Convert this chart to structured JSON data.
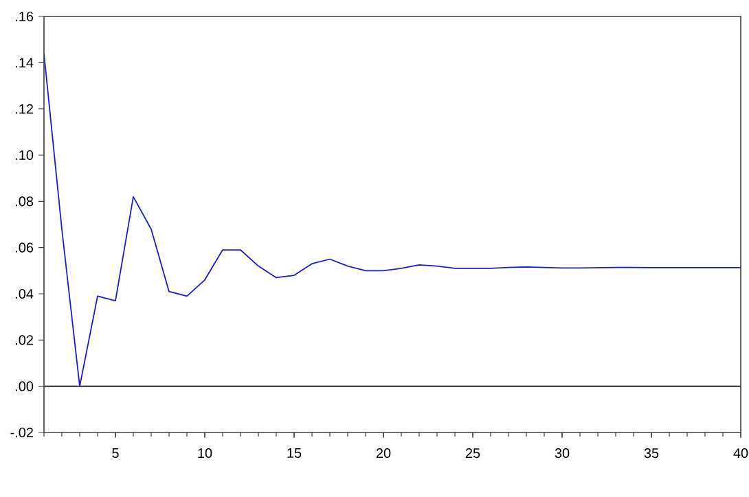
{
  "chart_data": {
    "type": "line",
    "x": [
      1,
      2,
      3,
      4,
      5,
      6,
      7,
      8,
      9,
      10,
      11,
      12,
      13,
      14,
      15,
      16,
      17,
      18,
      19,
      20,
      21,
      22,
      23,
      24,
      25,
      26,
      27,
      28,
      29,
      30,
      31,
      32,
      33,
      34,
      35,
      36,
      37,
      38,
      39,
      40
    ],
    "values": [
      0.144,
      0.068,
      0.0,
      0.039,
      0.037,
      0.082,
      0.068,
      0.041,
      0.039,
      0.046,
      0.059,
      0.059,
      0.052,
      0.047,
      0.048,
      0.053,
      0.055,
      0.052,
      0.05,
      0.05,
      0.051,
      0.0525,
      0.052,
      0.051,
      0.051,
      0.051,
      0.0514,
      0.0516,
      0.0514,
      0.0512,
      0.0512,
      0.0513,
      0.0514,
      0.0514,
      0.0513,
      0.0513,
      0.0513,
      0.0513,
      0.0513,
      0.0513
    ],
    "color": "#1a1adc",
    "line_style": "solid",
    "marker": "none",
    "xlim": [
      1,
      40
    ],
    "xticks": [
      5,
      10,
      15,
      20,
      25,
      30,
      35,
      40
    ],
    "ylim": [
      -0.02,
      0.16
    ],
    "yticks": [
      {
        "value": -0.02,
        "label": "-.02"
      },
      {
        "value": 0.0,
        "label": ".00"
      },
      {
        "value": 0.02,
        "label": ".02"
      },
      {
        "value": 0.04,
        "label": ".04"
      },
      {
        "value": 0.06,
        "label": ".06"
      },
      {
        "value": 0.08,
        "label": ".08"
      },
      {
        "value": 0.1,
        "label": ".10"
      },
      {
        "value": 0.12,
        "label": ".12"
      },
      {
        "value": 0.14,
        "label": ".14"
      },
      {
        "value": 0.16,
        "label": ".16"
      }
    ],
    "ref_lines": [
      {
        "axis": "y",
        "value": 0.0,
        "color": "#000000"
      }
    ]
  }
}
